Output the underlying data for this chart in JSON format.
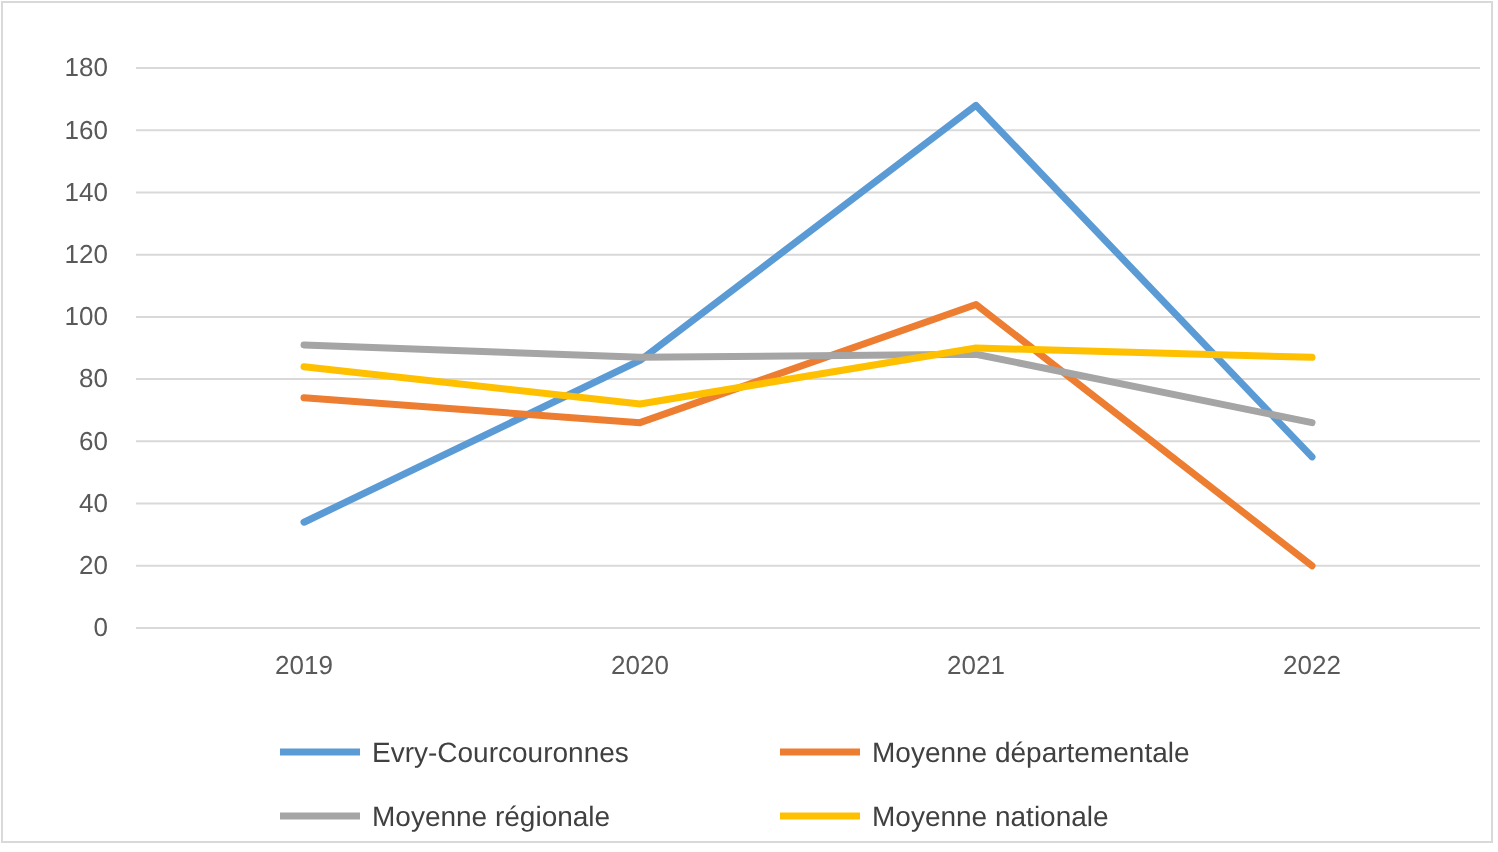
{
  "chart_data": {
    "type": "line",
    "categories": [
      "2019",
      "2020",
      "2021",
      "2022"
    ],
    "series": [
      {
        "name": "Evry-Courcouronnes",
        "color": "#5b9bd5",
        "values": [
          34,
          86,
          168,
          55
        ]
      },
      {
        "name": "Moyenne départementale",
        "color": "#ed7d31",
        "values": [
          74,
          66,
          104,
          20
        ]
      },
      {
        "name": "Moyenne régionale",
        "color": "#a5a5a5",
        "values": [
          91,
          87,
          88,
          66
        ]
      },
      {
        "name": "Moyenne nationale",
        "color": "#ffc000",
        "values": [
          84,
          72,
          90,
          87
        ]
      }
    ],
    "ylim": [
      0,
      180
    ],
    "yticks": [
      0,
      20,
      40,
      60,
      80,
      100,
      120,
      140,
      160,
      180
    ],
    "grid": "y",
    "legend": "bottom",
    "marker": "none",
    "line_style": "solid"
  }
}
